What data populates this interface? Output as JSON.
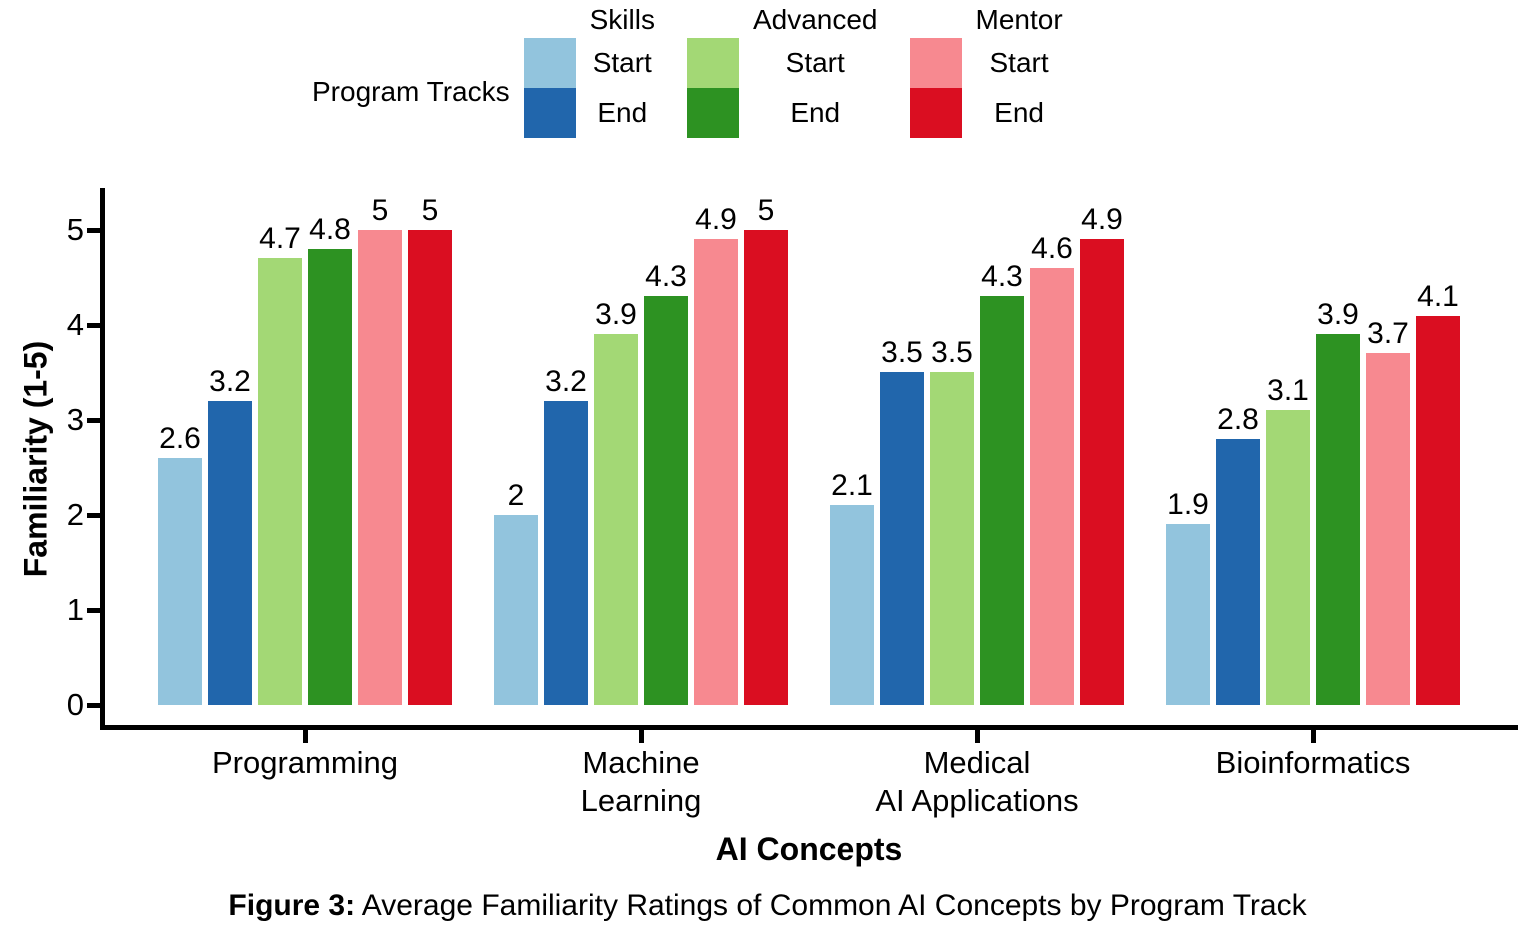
{
  "legend": {
    "title": "Program Tracks",
    "groups": [
      {
        "name": "Skills",
        "entries": [
          {
            "label": "Start",
            "color": "#92C4DD"
          },
          {
            "label": "End",
            "color": "#2166AC"
          }
        ]
      },
      {
        "name": "Advanced",
        "entries": [
          {
            "label": "Start",
            "color": "#A3D875"
          },
          {
            "label": "End",
            "color": "#2D9222"
          }
        ]
      },
      {
        "name": "Mentor",
        "entries": [
          {
            "label": "Start",
            "color": "#F78990"
          },
          {
            "label": "End",
            "color": "#DA0E21"
          }
        ]
      }
    ]
  },
  "chart_data": {
    "type": "bar",
    "title": "",
    "xlabel": "AI Concepts",
    "ylabel": "Familiarity (1-5)",
    "ylim": [
      0,
      5
    ],
    "yticks": [
      0,
      1,
      2,
      3,
      4,
      5
    ],
    "grid": false,
    "legend_position": "top",
    "bar_value_labels": true,
    "categories": [
      "Programming",
      "Machine\nLearning",
      "Medical\nAI Applications",
      "Bioinformatics"
    ],
    "series": [
      {
        "name": "Skills Start",
        "color": "#92C4DD",
        "values": [
          2.6,
          2,
          2.1,
          1.9
        ]
      },
      {
        "name": "Skills End",
        "color": "#2166AC",
        "values": [
          3.2,
          3.2,
          3.5,
          2.8
        ]
      },
      {
        "name": "Advanced Start",
        "color": "#A3D875",
        "values": [
          4.7,
          3.9,
          3.5,
          3.1
        ]
      },
      {
        "name": "Advanced End",
        "color": "#2D9222",
        "values": [
          4.8,
          4.3,
          4.3,
          3.9
        ]
      },
      {
        "name": "Mentor Start",
        "color": "#F78990",
        "values": [
          5,
          4.9,
          4.6,
          3.7
        ]
      },
      {
        "name": "Mentor End",
        "color": "#DA0E21",
        "values": [
          5,
          5,
          4.9,
          4.1
        ]
      }
    ]
  },
  "caption": {
    "prefix": "Figure 3:",
    "text": "Average Familiarity Ratings of Common AI Concepts by Program Track"
  }
}
